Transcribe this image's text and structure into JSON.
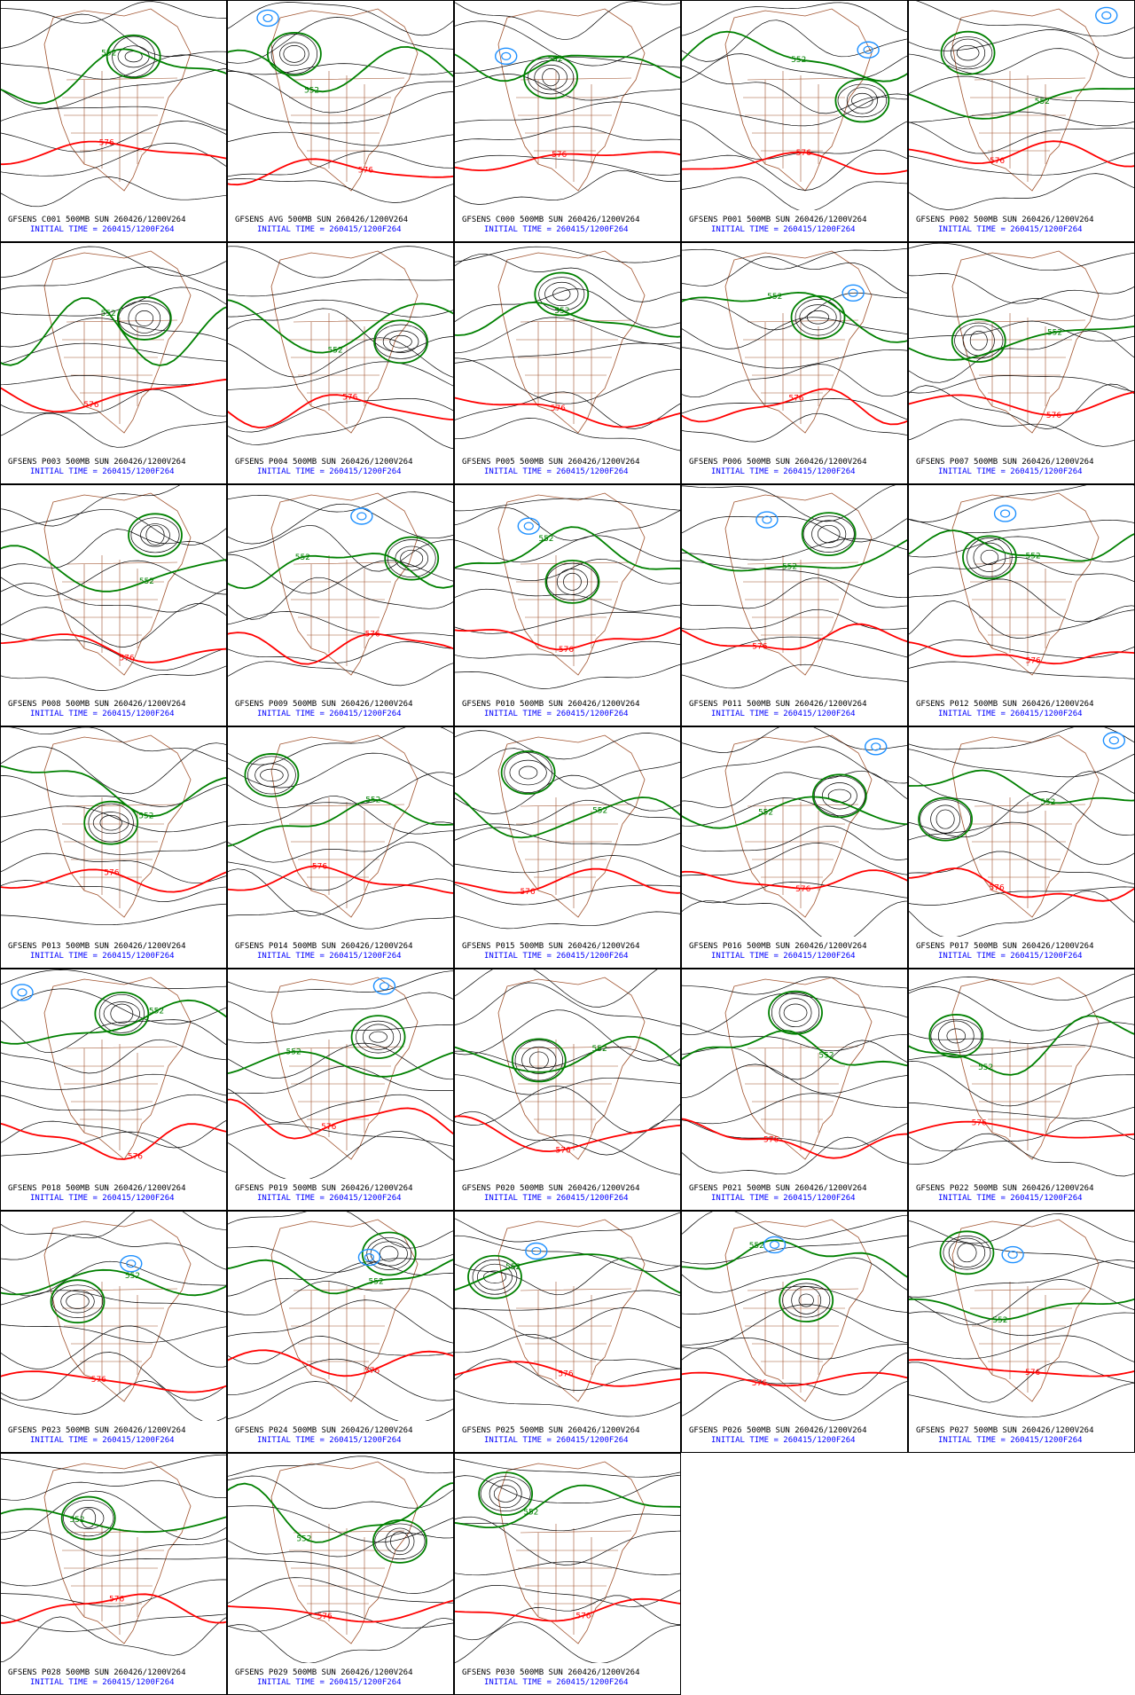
{
  "contour_labels": {
    "green": "552",
    "red": "576"
  },
  "panels": [
    {
      "title": "GFSENS C001 500MB SUN 260426/1200V264",
      "init": "INITIAL TIME = 260415/1200F264"
    },
    {
      "title": "GFSENS AVG 500MB SUN 260426/1200V264",
      "init": "INITIAL TIME = 260415/1200F264"
    },
    {
      "title": "GFSENS C000 500MB SUN 260426/1200V264",
      "init": "INITIAL TIME = 260415/1200F264"
    },
    {
      "title": "GFSENS P001 500MB SUN 260426/1200V264",
      "init": "INITIAL TIME = 260415/1200F264"
    },
    {
      "title": "GFSENS P002 500MB SUN 260426/1200V264",
      "init": "INITIAL TIME = 260415/1200F264"
    },
    {
      "title": "GFSENS P003 500MB SUN 260426/1200V264",
      "init": "INITIAL TIME = 260415/1200F264"
    },
    {
      "title": "GFSENS P004 500MB SUN 260426/1200V264",
      "init": "INITIAL TIME = 260415/1200F264"
    },
    {
      "title": "GFSENS P005 500MB SUN 260426/1200V264",
      "init": "INITIAL TIME = 260415/1200F264"
    },
    {
      "title": "GFSENS P006 500MB SUN 260426/1200V264",
      "init": "INITIAL TIME = 260415/1200F264"
    },
    {
      "title": "GFSENS P007 500MB SUN 260426/1200V264",
      "init": "INITIAL TIME = 260415/1200F264"
    },
    {
      "title": "GFSENS P008 500MB SUN 260426/1200V264",
      "init": "INITIAL TIME = 260415/1200F264"
    },
    {
      "title": "GFSENS P009 500MB SUN 260426/1200V264",
      "init": "INITIAL TIME = 260415/1200F264"
    },
    {
      "title": "GFSENS P010 500MB SUN 260426/1200V264",
      "init": "INITIAL TIME = 260415/1200F264"
    },
    {
      "title": "GFSENS P011 500MB SUN 260426/1200V264",
      "init": "INITIAL TIME = 260415/1200F264"
    },
    {
      "title": "GFSENS P012 500MB SUN 260426/1200V264",
      "init": "INITIAL TIME = 260415/1200F264"
    },
    {
      "title": "GFSENS P013 500MB SUN 260426/1200V264",
      "init": "INITIAL TIME = 260415/1200F264"
    },
    {
      "title": "GFSENS P014 500MB SUN 260426/1200V264",
      "init": "INITIAL TIME = 260415/1200F264"
    },
    {
      "title": "GFSENS P015 500MB SUN 260426/1200V264",
      "init": "INITIAL TIME = 260415/1200F264"
    },
    {
      "title": "GFSENS P016 500MB SUN 260426/1200V264",
      "init": "INITIAL TIME = 260415/1200F264"
    },
    {
      "title": "GFSENS P017 500MB SUN 260426/1200V264",
      "init": "INITIAL TIME = 260415/1200F264"
    },
    {
      "title": "GFSENS P018 500MB SUN 260426/1200V264",
      "init": "INITIAL TIME = 260415/1200F264"
    },
    {
      "title": "GFSENS P019 500MB SUN 260426/1200V264",
      "init": "INITIAL TIME = 260415/1200F264"
    },
    {
      "title": "GFSENS P020 500MB SUN 260426/1200V264",
      "init": "INITIAL TIME = 260415/1200F264"
    },
    {
      "title": "GFSENS P021 500MB SUN 260426/1200V264",
      "init": "INITIAL TIME = 260415/1200F264"
    },
    {
      "title": "GFSENS P022 500MB SUN 260426/1200V264",
      "init": "INITIAL TIME = 260415/1200F264"
    },
    {
      "title": "GFSENS P023 500MB SUN 260426/1200V264",
      "init": "INITIAL TIME = 260415/1200F264"
    },
    {
      "title": "GFSENS P024 500MB SUN 260426/1200V264",
      "init": "INITIAL TIME = 260415/1200F264"
    },
    {
      "title": "GFSENS P025 500MB SUN 260426/1200V264",
      "init": "INITIAL TIME = 260415/1200F264"
    },
    {
      "title": "GFSENS P026 500MB SUN 260426/1200V264",
      "init": "INITIAL TIME = 260415/1200F264"
    },
    {
      "title": "GFSENS P027 500MB SUN 260426/1200V264",
      "init": "INITIAL TIME = 260415/1200F264"
    },
    {
      "title": "GFSENS P028 500MB SUN 260426/1200V264",
      "init": "INITIAL TIME = 260415/1200F264"
    },
    {
      "title": "GFSENS P029 500MB SUN 260426/1200V264",
      "init": "INITIAL TIME = 260415/1200F264"
    },
    {
      "title": "GFSENS P030 500MB SUN 260426/1200V264",
      "init": "INITIAL TIME = 260415/1200F264"
    }
  ]
}
